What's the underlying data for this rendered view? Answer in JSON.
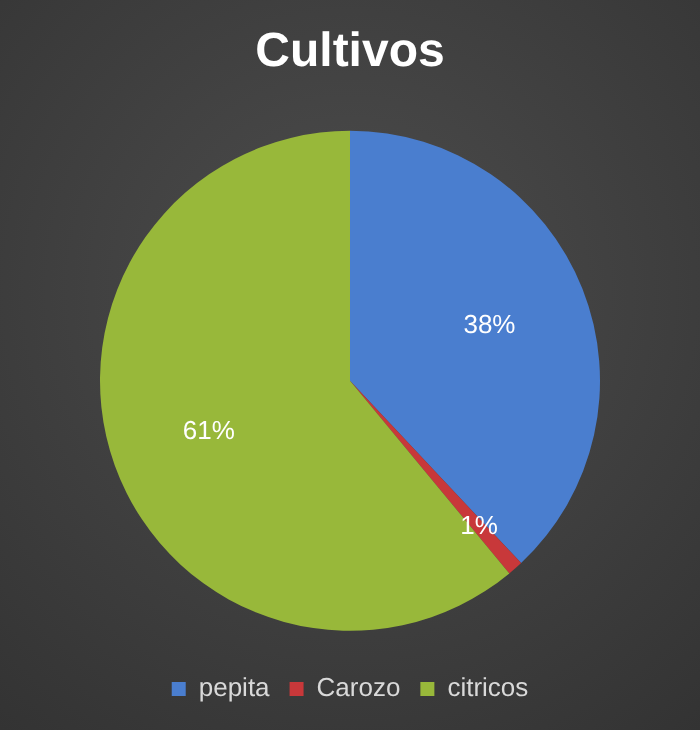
{
  "chart_data": {
    "type": "pie",
    "title": "Cultivos",
    "categories": [
      "pepita",
      "Carozo",
      "citricos"
    ],
    "values": [
      38,
      1,
      61
    ],
    "colors": [
      "#4a7ecf",
      "#c8383a",
      "#98b83a"
    ],
    "value_labels": [
      "38%",
      "1%",
      "61%"
    ],
    "legend": "bottom"
  }
}
